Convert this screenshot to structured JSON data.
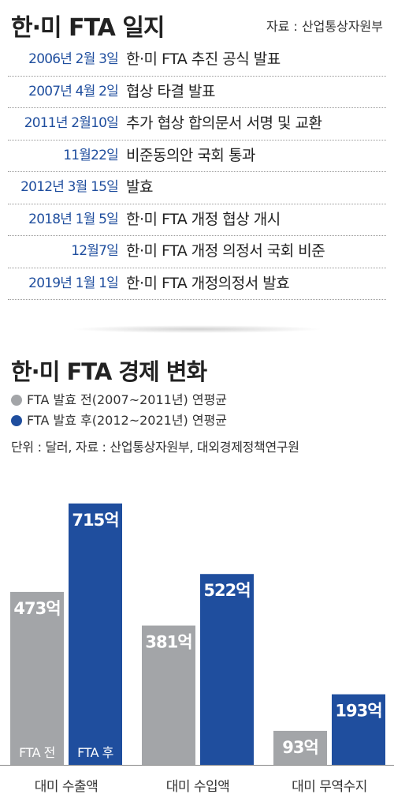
{
  "header": {
    "title": "한·미 FTA 일지",
    "source": "자료 : 산업통상자원부"
  },
  "timeline": [
    {
      "date": "2006년 2월 3일",
      "event": "한·미 FTA 추진 공식 발표"
    },
    {
      "date": "2007년 4월 2일",
      "event": "협상 타결 발표"
    },
    {
      "date": "2011년 2월10일",
      "event": "추가 협상 합의문서 서명 및 교환"
    },
    {
      "date": "11월22일",
      "event": "비준동의안 국회 통과"
    },
    {
      "date": "2012년 3월 15일",
      "event": "발효"
    },
    {
      "date": "2018년 1월 5일",
      "event": "한·미 FTA 개정 협상 개시"
    },
    {
      "date": "12월7일",
      "event": "한·미 FTA 개정 의정서 국회 비준"
    },
    {
      "date": "2019년 1월 1일",
      "event": "한·미 FTA 개정의정서 발효"
    }
  ],
  "section2": {
    "title": "한·미 FTA 경제 변화",
    "legend": [
      {
        "label": "FTA 발효 전(2007~2011년) 연평균",
        "color": "#a3a5a8"
      },
      {
        "label": "FTA 발효 후(2012~2021년) 연평균",
        "color": "#1f4e9e"
      }
    ],
    "unit_source": "단위 : 달러, 자료 : 산업통상자원부, 대외경제정책연구원"
  },
  "chart_data": {
    "type": "bar",
    "categories": [
      "대미 수출액",
      "대미 수입액",
      "대미 무역수지"
    ],
    "series": [
      {
        "name": "FTA 전",
        "color": "#a3a5a8",
        "values": [
          473,
          381,
          93
        ],
        "labels": [
          "473억",
          "381억",
          "93억"
        ]
      },
      {
        "name": "FTA 후",
        "color": "#1f4e9e",
        "values": [
          715,
          522,
          193
        ],
        "labels": [
          "715억",
          "522억",
          "193억"
        ]
      }
    ],
    "ylim": [
      0,
      760
    ],
    "grid": false
  }
}
